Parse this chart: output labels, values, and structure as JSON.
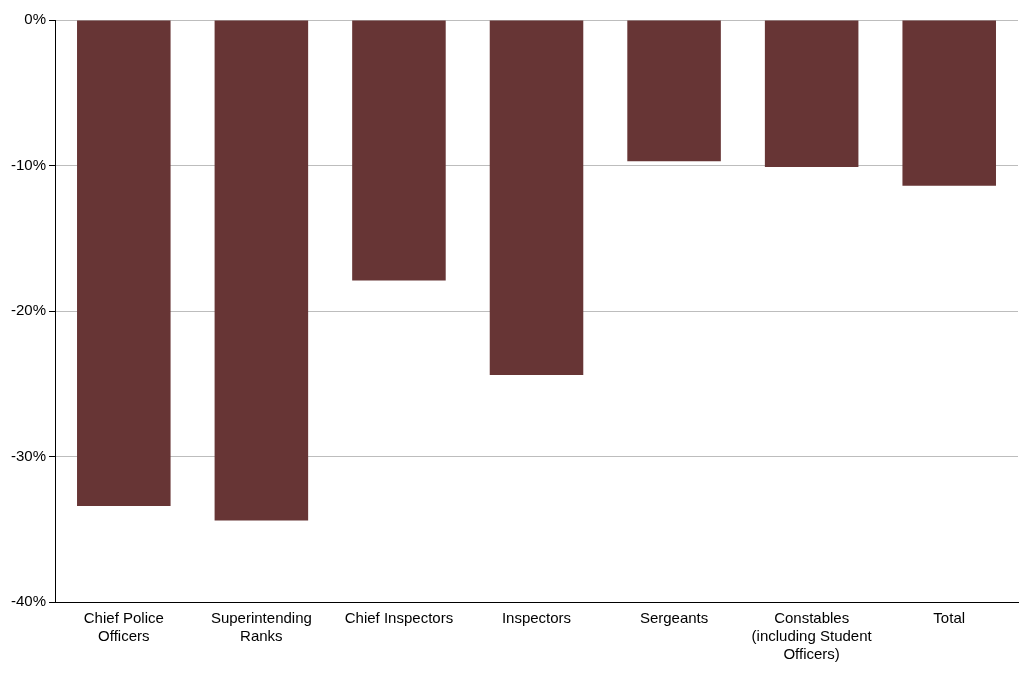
{
  "chart_data": {
    "type": "bar",
    "categories": [
      "Chief Police Officers",
      "Superintending Ranks",
      "Chief Inspectors",
      "Inspectors",
      "Sergeants",
      "Constables (including Student Officers)",
      "Total"
    ],
    "values": [
      -33.4,
      -34.4,
      -17.9,
      -24.4,
      -9.7,
      -10.1,
      -11.4
    ],
    "color": "#673535",
    "ylim": [
      -40,
      0
    ],
    "yticks": [
      {
        "value": -40,
        "label": "-40%"
      },
      {
        "value": -30,
        "label": "-30%"
      },
      {
        "value": -20,
        "label": "-20%"
      },
      {
        "value": -10,
        "label": "-10%"
      },
      {
        "value": 0,
        "label": "0%"
      }
    ],
    "grid": "y",
    "legend": false
  }
}
